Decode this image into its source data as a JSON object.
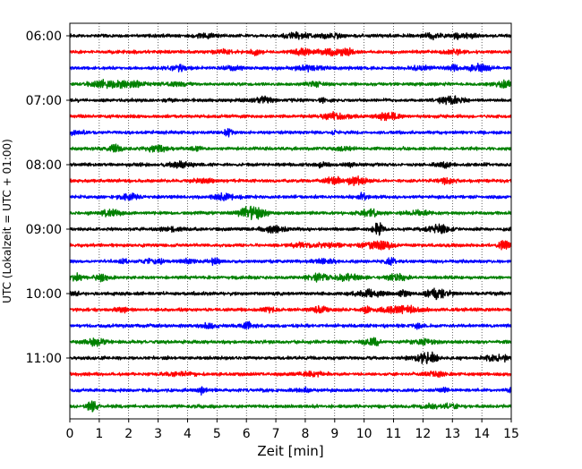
{
  "chart_data": {
    "type": "line",
    "title": "",
    "xlabel": "Zeit  [min]",
    "ylabel": "UTC (Lokalzeit = UTC + 01:00)",
    "xlim": [
      0,
      15
    ],
    "x_ticks": [
      "0",
      "1",
      "2",
      "3",
      "4",
      "5",
      "6",
      "7",
      "8",
      "9",
      "10",
      "11",
      "12",
      "13",
      "14",
      "15"
    ],
    "y_tick_labels": [
      "06:00",
      "07:00",
      "08:00",
      "09:00",
      "10:00",
      "11:00"
    ],
    "y_tick_rows": [
      0,
      4,
      8,
      12,
      16,
      20
    ],
    "trace_start_times": [
      "06:00",
      "06:15",
      "06:30",
      "06:45",
      "07:00",
      "07:15",
      "07:30",
      "07:45",
      "08:00",
      "08:15",
      "08:30",
      "08:45",
      "09:00",
      "09:15",
      "09:30",
      "09:45",
      "10:00",
      "10:15",
      "10:30",
      "10:45",
      "11:00",
      "11:15",
      "11:30",
      "11:45"
    ],
    "trace_colors": [
      "#000000",
      "#ff0000",
      "#0000ff",
      "#008000"
    ],
    "vertical_grid": "dotted at each minute",
    "grid": true
  }
}
